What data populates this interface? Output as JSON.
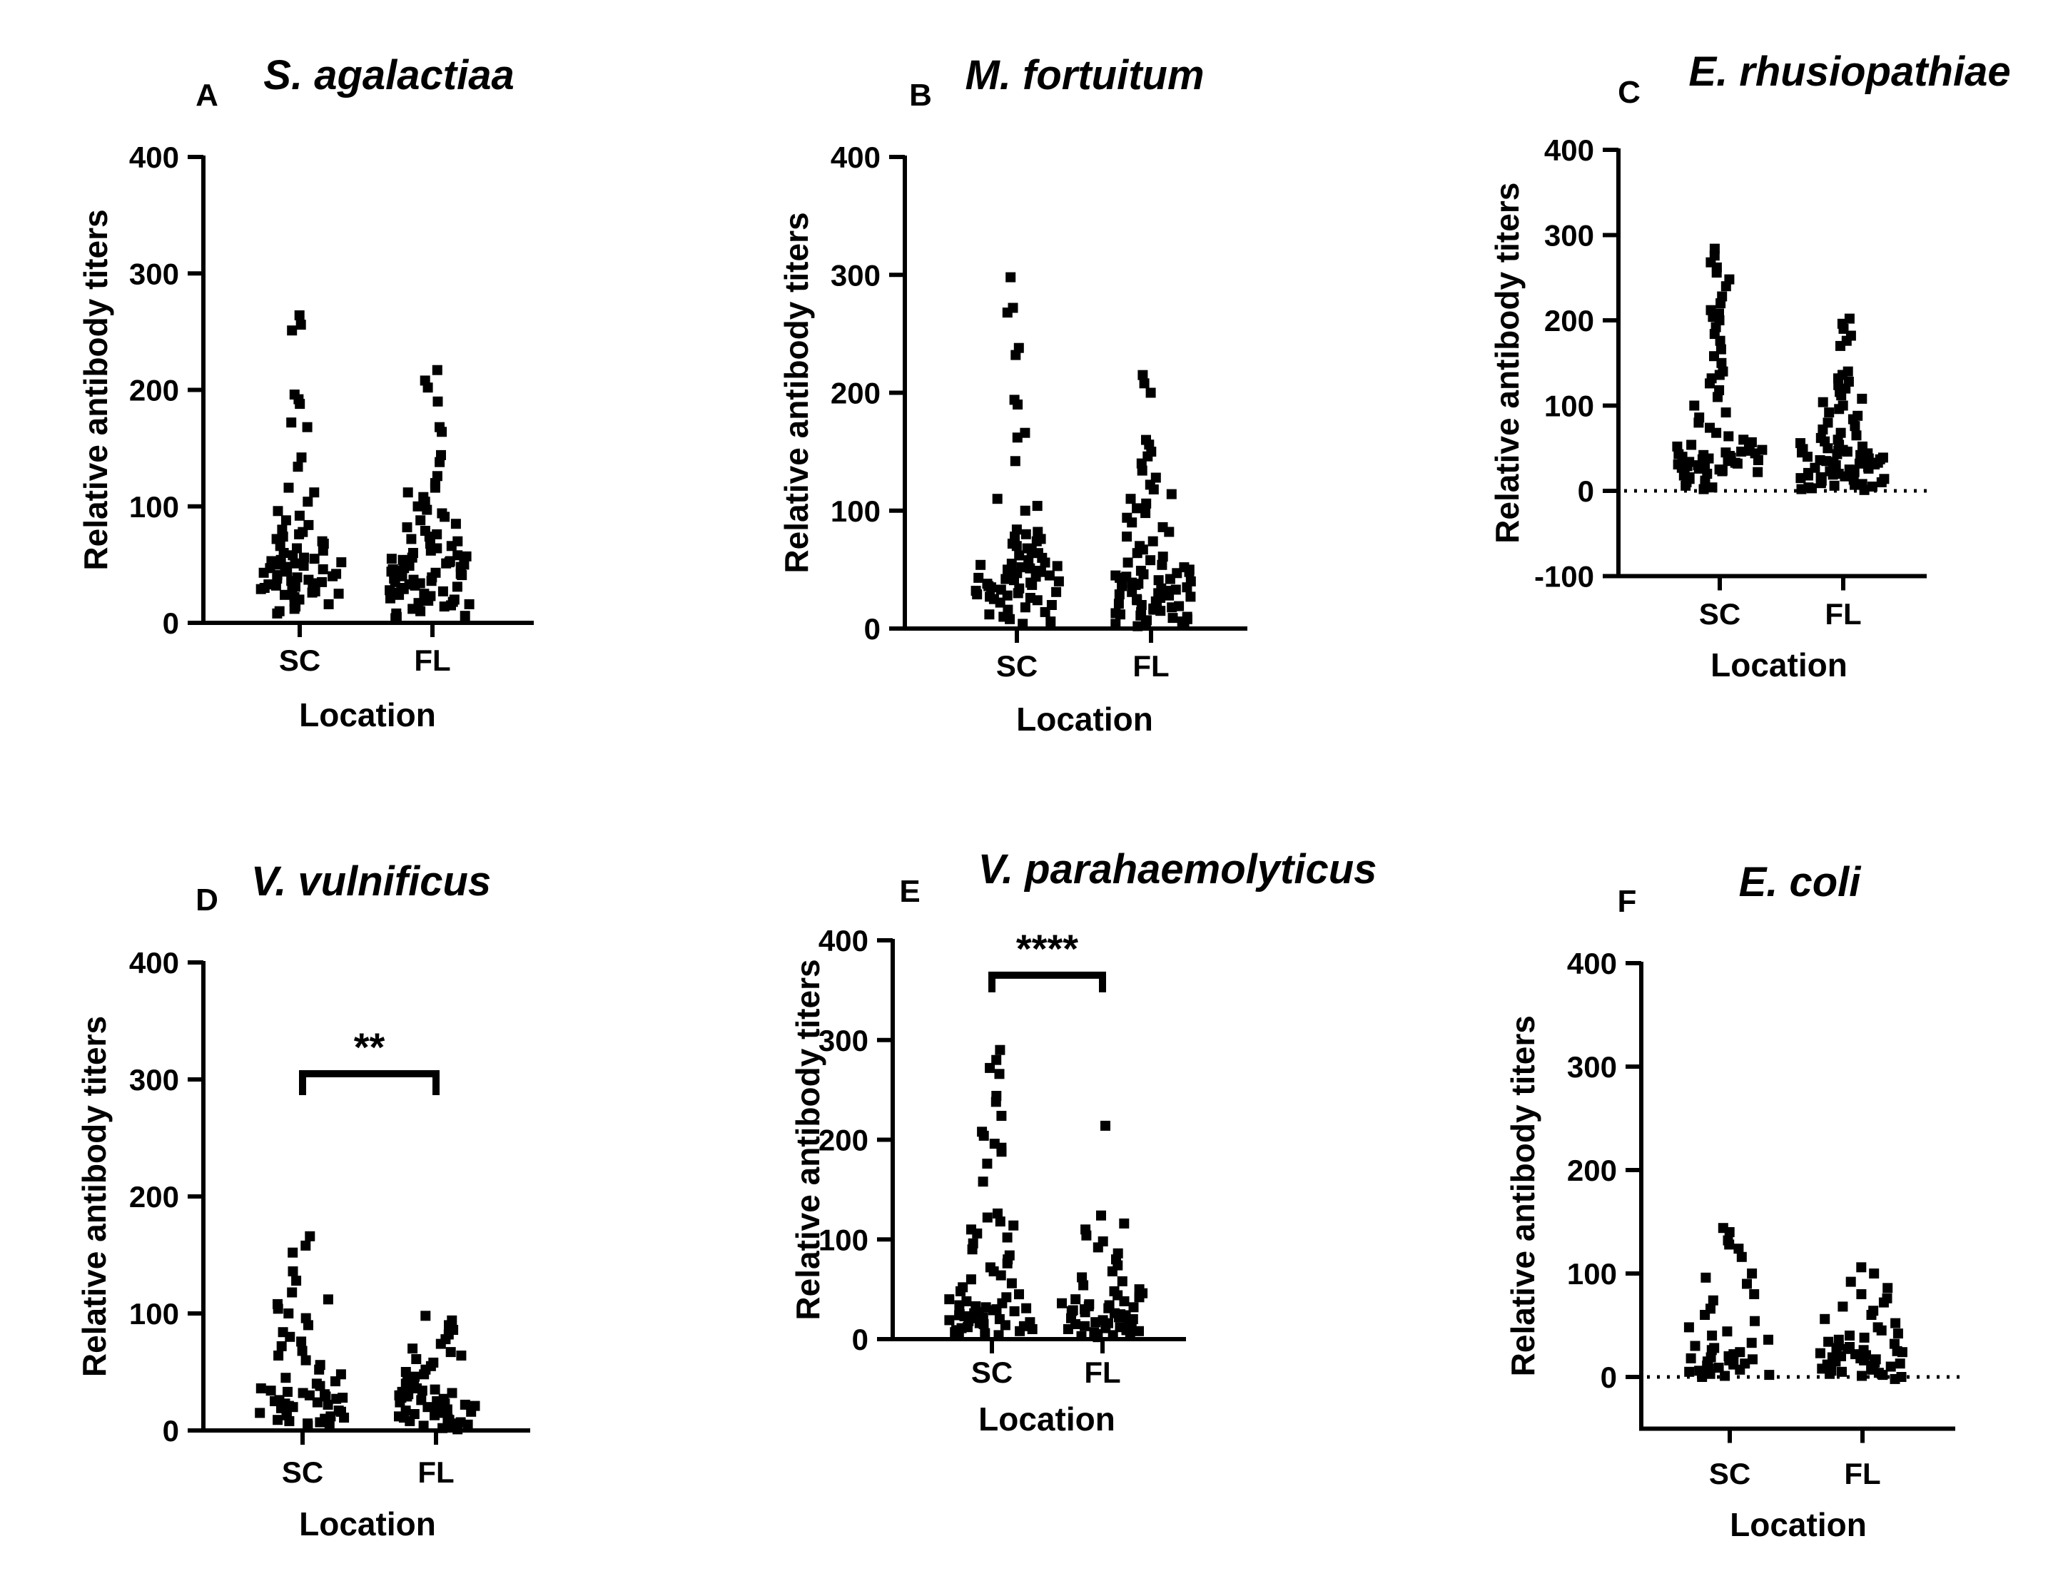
{
  "figure_description": "Six-panel scatter dot plot comparing relative antibody titers between SC and FL locations",
  "chart_data": [
    {
      "panel": "A",
      "type": "scatter",
      "title": "S. agalactiaa",
      "xlabel": "Location",
      "ylabel": "Relative antibody titers",
      "categories": [
        "SC",
        "FL"
      ],
      "ylim": [
        0,
        400
      ],
      "yticks": [
        0,
        100,
        200,
        300,
        400
      ],
      "zero_line": false,
      "significance": null,
      "series": [
        {
          "name": "SC",
          "values": [
            264,
            256,
            251,
            196,
            192,
            188,
            172,
            168,
            142,
            134,
            116,
            112,
            104,
            96,
            92,
            88,
            84,
            80,
            78,
            76,
            74,
            72,
            70,
            68,
            66,
            64,
            62,
            60,
            58,
            56,
            55,
            54,
            53,
            52,
            51,
            50,
            49,
            48,
            47,
            46,
            45,
            44,
            43,
            42,
            41,
            40,
            39,
            38,
            37,
            36,
            35,
            34,
            33,
            32,
            31,
            30,
            29,
            28,
            27,
            26,
            25,
            24,
            22,
            20,
            18,
            16,
            14,
            12,
            10,
            8
          ]
        },
        {
          "name": "FL",
          "values": [
            217,
            208,
            202,
            190,
            168,
            164,
            144,
            138,
            126,
            120,
            116,
            112,
            108,
            104,
            100,
            97,
            94,
            91,
            88,
            85,
            82,
            79,
            76,
            74,
            72,
            70,
            68,
            66,
            64,
            62,
            60,
            58,
            57,
            56,
            55,
            54,
            53,
            52,
            51,
            50,
            49,
            48,
            47,
            46,
            45,
            44,
            43,
            42,
            41,
            40,
            39,
            38,
            37,
            36,
            35,
            34,
            33,
            32,
            31,
            30,
            29,
            28,
            27,
            26,
            25,
            24,
            23,
            22,
            21,
            20,
            19,
            18,
            17,
            16,
            15,
            14,
            12,
            10,
            8,
            6,
            5,
            4
          ]
        }
      ]
    },
    {
      "panel": "B",
      "type": "scatter",
      "title": "M. fortuitum",
      "xlabel": "Location",
      "ylabel": "Relative antibody titers",
      "categories": [
        "SC",
        "FL"
      ],
      "ylim": [
        0,
        400
      ],
      "yticks": [
        0,
        100,
        200,
        300,
        400
      ],
      "zero_line": false,
      "significance": null,
      "series": [
        {
          "name": "SC",
          "values": [
            298,
            272,
            268,
            238,
            232,
            194,
            190,
            166,
            162,
            142,
            110,
            104,
            100,
            84,
            82,
            80,
            78,
            76,
            74,
            72,
            70,
            68,
            66,
            64,
            62,
            60,
            58,
            56,
            55,
            54,
            53,
            52,
            51,
            50,
            49,
            48,
            47,
            46,
            45,
            44,
            43,
            42,
            41,
            40,
            39,
            38,
            37,
            36,
            35,
            34,
            33,
            32,
            31,
            30,
            29,
            28,
            27,
            26,
            25,
            24,
            22,
            20,
            18,
            16,
            14,
            12,
            10,
            8,
            6,
            4
          ]
        },
        {
          "name": "FL",
          "values": [
            215,
            208,
            200,
            160,
            156,
            150,
            146,
            140,
            134,
            128,
            122,
            118,
            114,
            110,
            106,
            102,
            98,
            94,
            90,
            86,
            82,
            78,
            74,
            70,
            67,
            64,
            61,
            58,
            56,
            54,
            52,
            50,
            49,
            48,
            47,
            46,
            45,
            44,
            43,
            42,
            41,
            40,
            39,
            38,
            37,
            36,
            35,
            34,
            33,
            32,
            31,
            30,
            29,
            28,
            27,
            26,
            25,
            24,
            23,
            22,
            21,
            20,
            19,
            18,
            17,
            16,
            15,
            14,
            13,
            12,
            11,
            10,
            9,
            8,
            7,
            6,
            5,
            4,
            3,
            2
          ]
        }
      ]
    },
    {
      "panel": "C",
      "type": "scatter",
      "title": "E. rhusiopathiae",
      "xlabel": "Location",
      "ylabel": "Relative antibody titers",
      "categories": [
        "SC",
        "FL"
      ],
      "ylim": [
        -100,
        400
      ],
      "yticks": [
        -100,
        0,
        100,
        200,
        300,
        400
      ],
      "zero_line": true,
      "significance": null,
      "series": [
        {
          "name": "SC",
          "values": [
            284,
            276,
            268,
            262,
            256,
            248,
            240,
            228,
            220,
            212,
            208,
            204,
            200,
            192,
            184,
            176,
            166,
            158,
            150,
            140,
            136,
            132,
            126,
            118,
            110,
            100,
            92,
            86,
            80,
            74,
            68,
            64,
            60,
            57,
            54,
            52,
            50,
            48,
            47,
            46,
            45,
            44,
            43,
            42,
            41,
            40,
            39,
            38,
            37,
            36,
            35,
            34,
            33,
            32,
            31,
            30,
            29,
            28,
            27,
            26,
            25,
            24,
            23,
            22,
            21,
            20,
            18,
            16,
            14,
            12,
            10,
            8,
            6,
            4,
            2
          ]
        },
        {
          "name": "FL",
          "values": [
            202,
            196,
            190,
            182,
            176,
            170,
            140,
            136,
            132,
            128,
            124,
            120,
            116,
            112,
            108,
            104,
            100,
            96,
            92,
            88,
            84,
            80,
            76,
            72,
            68,
            65,
            62,
            60,
            58,
            56,
            54,
            52,
            50,
            49,
            48,
            47,
            46,
            45,
            44,
            43,
            42,
            41,
            40,
            39,
            38,
            37,
            36,
            35,
            34,
            33,
            32,
            31,
            30,
            29,
            28,
            27,
            26,
            25,
            24,
            23,
            22,
            21,
            20,
            19,
            18,
            17,
            16,
            15,
            14,
            13,
            12,
            11,
            10,
            9,
            8,
            7,
            6,
            5,
            4,
            3,
            2,
            1
          ]
        }
      ]
    },
    {
      "panel": "D",
      "type": "scatter",
      "title": "V. vulnificus",
      "xlabel": "Location",
      "ylabel": "Relative antibody titers",
      "categories": [
        "SC",
        "FL"
      ],
      "ylim": [
        0,
        400
      ],
      "yticks": [
        0,
        100,
        200,
        300,
        400
      ],
      "zero_line": false,
      "significance": "**",
      "series": [
        {
          "name": "SC",
          "values": [
            166,
            158,
            152,
            136,
            128,
            118,
            112,
            108,
            104,
            100,
            96,
            90,
            84,
            80,
            76,
            72,
            68,
            64,
            60,
            56,
            52,
            48,
            45,
            42,
            40,
            38,
            36,
            34,
            33,
            32,
            31,
            30,
            29,
            28,
            27,
            26,
            25,
            24,
            23,
            22,
            21,
            20,
            19,
            18,
            17,
            16,
            15,
            14,
            13,
            12,
            11,
            10,
            9,
            8,
            7,
            6,
            5,
            4
          ]
        },
        {
          "name": "FL",
          "values": [
            98,
            94,
            90,
            86,
            82,
            78,
            74,
            70,
            67,
            64,
            61,
            58,
            55,
            52,
            50,
            48,
            46,
            44,
            42,
            40,
            38,
            36,
            35,
            34,
            33,
            32,
            31,
            30,
            29,
            28,
            27,
            26,
            25,
            24,
            23,
            22,
            21,
            20,
            19,
            18,
            17,
            16,
            15,
            14,
            13,
            12,
            11,
            10,
            9,
            8,
            7,
            6,
            5,
            4,
            3,
            2,
            1
          ]
        }
      ]
    },
    {
      "panel": "E",
      "type": "scatter",
      "title": "V. parahaemolyticus",
      "xlabel": "Location",
      "ylabel": "Relative antibody titers",
      "categories": [
        "SC",
        "FL"
      ],
      "ylim": [
        0,
        400
      ],
      "yticks": [
        0,
        100,
        200,
        300,
        400
      ],
      "zero_line": false,
      "significance": "****",
      "series": [
        {
          "name": "SC",
          "values": [
            290,
            280,
            272,
            266,
            244,
            238,
            224,
            208,
            204,
            196,
            192,
            188,
            176,
            158,
            126,
            122,
            118,
            114,
            110,
            106,
            102,
            96,
            90,
            84,
            80,
            76,
            72,
            68,
            64,
            60,
            56,
            52,
            48,
            45,
            42,
            40,
            38,
            36,
            34,
            33,
            32,
            31,
            30,
            29,
            28,
            27,
            26,
            25,
            24,
            23,
            22,
            21,
            20,
            19,
            18,
            17,
            16,
            15,
            14,
            13,
            12,
            11,
            10,
            9,
            8,
            7,
            6,
            5,
            4
          ]
        },
        {
          "name": "FL",
          "values": [
            214,
            124,
            116,
            110,
            104,
            98,
            92,
            86,
            80,
            74,
            68,
            62,
            58,
            54,
            50,
            48,
            46,
            44,
            42,
            40,
            38,
            36,
            35,
            34,
            33,
            32,
            31,
            30,
            29,
            28,
            27,
            26,
            25,
            24,
            23,
            22,
            21,
            20,
            19,
            18,
            17,
            16,
            15,
            14,
            13,
            12,
            11,
            10,
            9,
            8,
            7,
            6,
            5,
            4,
            3,
            2
          ]
        }
      ]
    },
    {
      "panel": "F",
      "type": "scatter",
      "title": "E. coli",
      "xlabel": "Location",
      "ylabel": "Relative antibody titers",
      "categories": [
        "SC",
        "FL"
      ],
      "ylim": [
        -50,
        400
      ],
      "yticks": [
        0,
        100,
        200,
        300,
        400
      ],
      "zero_line": true,
      "significance": null,
      "series": [
        {
          "name": "SC",
          "values": [
            144,
            140,
            132,
            128,
            124,
            116,
            100,
            96,
            90,
            80,
            74,
            66,
            60,
            54,
            48,
            44,
            40,
            36,
            33,
            30,
            28,
            26,
            24,
            22,
            20,
            19,
            18,
            17,
            16,
            15,
            14,
            13,
            12,
            11,
            10,
            9,
            8,
            7,
            6,
            5,
            4,
            3,
            2,
            1,
            0
          ]
        },
        {
          "name": "FL",
          "values": [
            106,
            100,
            92,
            86,
            80,
            76,
            72,
            68,
            64,
            60,
            56,
            52,
            48,
            45,
            42,
            40,
            38,
            36,
            34,
            32,
            30,
            29,
            28,
            27,
            26,
            25,
            24,
            23,
            22,
            21,
            20,
            19,
            18,
            17,
            16,
            15,
            14,
            13,
            12,
            11,
            10,
            9,
            8,
            7,
            6,
            5,
            4,
            3,
            2,
            1,
            0,
            -2
          ]
        }
      ]
    }
  ]
}
